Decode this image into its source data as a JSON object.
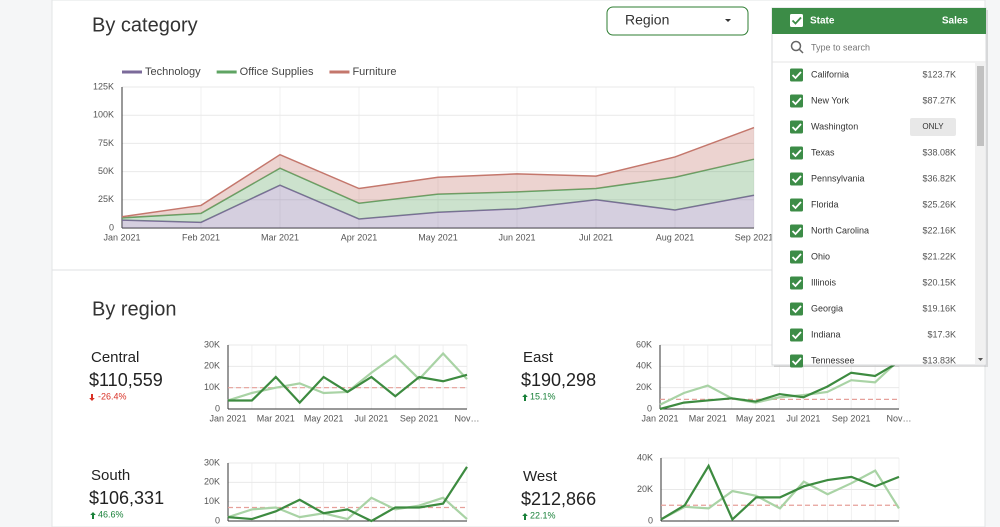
{
  "category_section": {
    "title": "By category",
    "dropdown": "Region"
  },
  "region_section": {
    "title": "By region",
    "cards": [
      {
        "name": "Central",
        "total": "$110,559",
        "change": "-26.4%"
      },
      {
        "name": "East",
        "total": "$190,298",
        "change": "15.1%"
      },
      {
        "name": "South",
        "total": "$106,331",
        "change": "46.6%"
      },
      {
        "name": "West",
        "total": "$212,866",
        "change": "22.1%"
      }
    ]
  },
  "state_filter": {
    "header": "State",
    "sales_header": "Sales",
    "search_placeholder": "Type to search",
    "items": [
      {
        "name": "California",
        "sales": "$123.7K"
      },
      {
        "name": "New York",
        "sales": "$87.27K"
      },
      {
        "name": "Washington",
        "button": "ONLY"
      },
      {
        "name": "Texas",
        "sales": "$38.08K"
      },
      {
        "name": "Pennsylvania",
        "sales": "$36.82K"
      },
      {
        "name": "Florida",
        "sales": "$25.26K"
      },
      {
        "name": "North Carolina",
        "sales": "$22.16K"
      },
      {
        "name": "Ohio",
        "sales": "$21.22K"
      },
      {
        "name": "Illinois",
        "sales": "$20.15K"
      },
      {
        "name": "Georgia",
        "sales": "$19.16K"
      },
      {
        "name": "Indiana",
        "sales": "$17.3K"
      },
      {
        "name": "Tennessee",
        "sales": "$13.83K"
      }
    ]
  },
  "chart_data": [
    {
      "type": "area",
      "stacked": true,
      "categories": [
        "Jan 2021",
        "Feb 2021",
        "Mar 2021",
        "Apr 2021",
        "May 2021",
        "Jun 2021",
        "Jul 2021",
        "Aug 2021",
        "Sep 2021"
      ],
      "series": [
        {
          "name": "Technology",
          "color": "#7b6a9a",
          "values": [
            7000,
            5000,
            38000,
            8000,
            14000,
            17000,
            25000,
            16000,
            29000
          ]
        },
        {
          "name": "Office Supplies",
          "color": "#5fa463",
          "values": [
            2000,
            8000,
            15000,
            14000,
            16000,
            15000,
            10000,
            29000,
            32000
          ]
        },
        {
          "name": "Furniture",
          "color": "#c4776c",
          "values": [
            1000,
            7000,
            12000,
            13000,
            15000,
            16000,
            11000,
            18000,
            28000
          ]
        }
      ],
      "ylim": [
        0,
        125000
      ],
      "yticks": [
        0,
        {
          "value": 25000,
          "label": "25K"
        },
        {
          "value": 50000,
          "label": "50K"
        },
        {
          "value": 75000,
          "label": "75K"
        },
        {
          "value": 100000,
          "label": "100K"
        },
        {
          "value": 125000,
          "label": "125K"
        }
      ],
      "grid": true
    },
    {
      "type": "line",
      "categories": [
        "Jan 2021",
        null,
        "Mar 2021",
        null,
        "May 2021",
        null,
        "Jul 2021",
        null,
        "Sep 2021",
        null,
        "Nov…"
      ],
      "series": [
        {
          "color": "#3d8b40",
          "values": [
            4000,
            4000,
            15000,
            3000,
            15000,
            8000,
            15000,
            6000,
            15000,
            13000,
            16000
          ]
        },
        {
          "color": "#a9d3a5",
          "values": [
            4000,
            7500,
            10000,
            12000,
            7500,
            8000,
            17000,
            25000,
            14000,
            26000,
            14000
          ]
        }
      ],
      "reference": 10000,
      "reference_color": "#e6a09a",
      "ylim": [
        0,
        30000
      ],
      "yticks": [
        0,
        {
          "value": 10000,
          "label": "10K"
        },
        {
          "value": 20000,
          "label": "20K"
        },
        {
          "value": 30000,
          "label": "30K"
        }
      ],
      "grid": true
    },
    {
      "type": "line",
      "categories": [
        "Jan 2021",
        null,
        "Mar 2021",
        null,
        "May 2021",
        null,
        "Jul 2021",
        null,
        "Sep 2021",
        null,
        "Nov…"
      ],
      "series": [
        {
          "color": "#3d8b40",
          "values": [
            0,
            6000,
            8000,
            10000,
            7000,
            14000,
            11000,
            21000,
            34000,
            31000,
            44000
          ]
        },
        {
          "color": "#a9d3a5",
          "values": [
            4000,
            15000,
            22000,
            10000,
            6000,
            11000,
            13000,
            16000,
            27000,
            25000,
            46000
          ]
        }
      ],
      "reference": 9000,
      "reference_color": "#e6a09a",
      "ylim": [
        0,
        60000
      ],
      "yticks": [
        0,
        {
          "value": 20000,
          "label": "20K"
        },
        {
          "value": 40000,
          "label": "40K"
        },
        {
          "value": 60000,
          "label": "60K"
        }
      ],
      "grid": true
    },
    {
      "type": "line",
      "series": [
        {
          "color": "#3d8b40",
          "values": [
            2000,
            1000,
            5000,
            11000,
            4000,
            6000,
            0,
            7000,
            7000,
            9000,
            28000
          ]
        },
        {
          "color": "#a9d3a5",
          "values": [
            2000,
            6000,
            7000,
            2000,
            4000,
            1000,
            12000,
            6000,
            8000,
            12000,
            1000
          ]
        }
      ],
      "reference": 7000,
      "reference_color": "#e6a09a",
      "ylim": [
        0,
        30000
      ],
      "yticks": [
        0,
        {
          "value": 10000,
          "label": "10K"
        },
        {
          "value": 20000,
          "label": "20K"
        },
        {
          "value": 30000,
          "label": "30K"
        }
      ],
      "grid": true
    },
    {
      "type": "line",
      "series": [
        {
          "color": "#3d8b40",
          "values": [
            1000,
            10000,
            35000,
            1000,
            15000,
            15000,
            22000,
            26000,
            28000,
            22000,
            28000
          ]
        },
        {
          "color": "#a9d3a5",
          "values": [
            1000,
            9000,
            8000,
            19000,
            16000,
            8000,
            25000,
            17000,
            24000,
            32000,
            8000
          ]
        }
      ],
      "reference": 10000,
      "reference_color": "#e6a09a",
      "ylim": [
        0,
        40000
      ],
      "yticks": [
        0,
        {
          "value": 20000,
          "label": "20K"
        },
        {
          "value": 40000,
          "label": "40K"
        }
      ],
      "grid": true
    }
  ]
}
